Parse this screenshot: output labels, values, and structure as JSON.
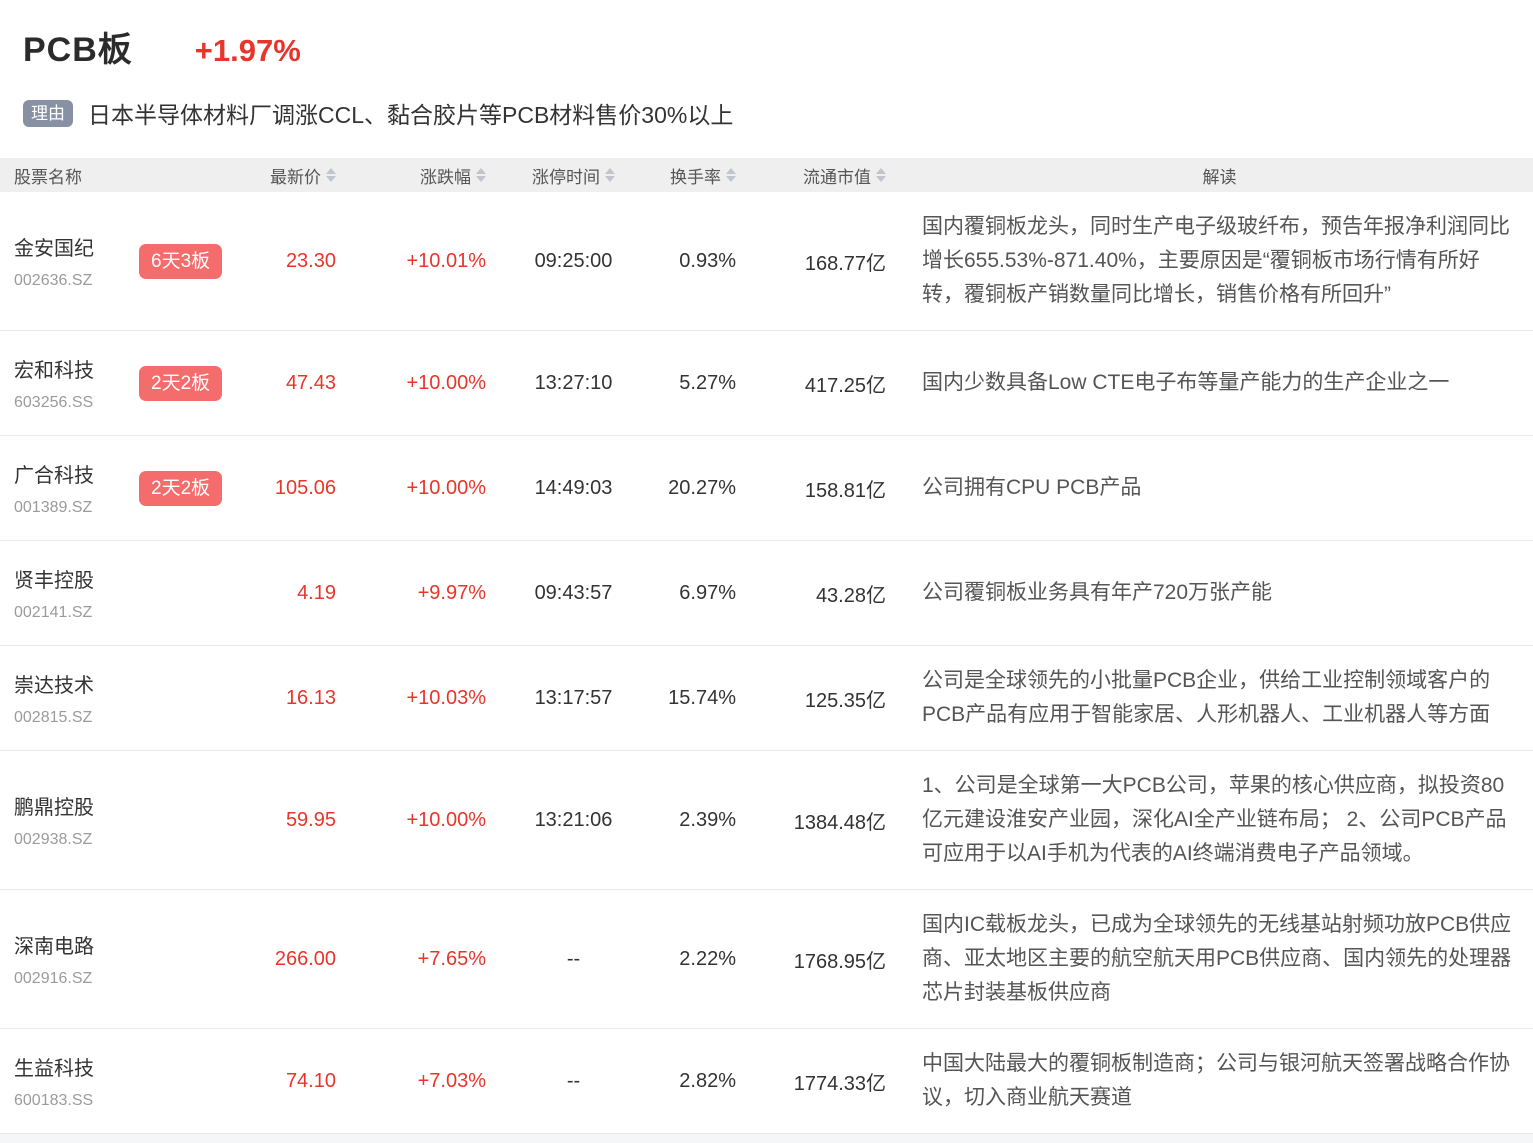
{
  "header": {
    "title": "PCB板",
    "change": "+1.97%",
    "reason_badge": "理由",
    "reason": "日本半导体材料厂调涨CCL、黏合胶片等PCB材料售价30%以上"
  },
  "table": {
    "columns": {
      "name": "股票名称",
      "price": "最新价",
      "change": "涨跌幅",
      "limit_time": "涨停时间",
      "turnover": "换手率",
      "market_cap": "流通市值",
      "analysis": "解读"
    },
    "stocks": [
      {
        "name": "金安国纪",
        "code": "002636.SZ",
        "badge": "6天3板",
        "price": "23.30",
        "change": "+10.01%",
        "limit_time": "09:25:00",
        "turnover": "0.93%",
        "market_cap": "168.77亿",
        "analysis": "国内覆铜板龙头，同时生产电子级玻纤布，预告年报净利润同比增长655.53%-871.40%，主要原因是“覆铜板市场行情有所好转，覆铜板产销数量同比增长，销售价格有所回升”"
      },
      {
        "name": "宏和科技",
        "code": "603256.SS",
        "badge": "2天2板",
        "price": "47.43",
        "change": "+10.00%",
        "limit_time": "13:27:10",
        "turnover": "5.27%",
        "market_cap": "417.25亿",
        "analysis": "国内少数具备Low CTE电子布等量产能力的生产企业之一"
      },
      {
        "name": "广合科技",
        "code": "001389.SZ",
        "badge": "2天2板",
        "price": "105.06",
        "change": "+10.00%",
        "limit_time": "14:49:03",
        "turnover": "20.27%",
        "market_cap": "158.81亿",
        "analysis": "公司拥有CPU PCB产品"
      },
      {
        "name": "贤丰控股",
        "code": "002141.SZ",
        "badge": "",
        "price": "4.19",
        "change": "+9.97%",
        "limit_time": "09:43:57",
        "turnover": "6.97%",
        "market_cap": "43.28亿",
        "analysis": "公司覆铜板业务具有年产720万张产能"
      },
      {
        "name": "崇达技术",
        "code": "002815.SZ",
        "badge": "",
        "price": "16.13",
        "change": "+10.03%",
        "limit_time": "13:17:57",
        "turnover": "15.74%",
        "market_cap": "125.35亿",
        "analysis": "公司是全球领先的小批量PCB企业，供给工业控制领域客户的PCB产品有应用于智能家居、人形机器人、工业机器人等方面"
      },
      {
        "name": "鹏鼎控股",
        "code": "002938.SZ",
        "badge": "",
        "price": "59.95",
        "change": "+10.00%",
        "limit_time": "13:21:06",
        "turnover": "2.39%",
        "market_cap": "1384.48亿",
        "analysis": "1、公司是全球第一大PCB公司，苹果的核心供应商，拟投资80亿元建设淮安产业园，深化AI全产业链布局； 2、公司PCB产品可应用于以AI手机为代表的AI终端消费电子产品领域。"
      },
      {
        "name": "深南电路",
        "code": "002916.SZ",
        "badge": "",
        "price": "266.00",
        "change": "+7.65%",
        "limit_time": "--",
        "turnover": "2.22%",
        "market_cap": "1768.95亿",
        "analysis": "国内IC载板龙头，已成为全球领先的无线基站射频功放PCB供应商、亚太地区主要的航空航天用PCB供应商、国内领先的处理器芯片封装基板供应商"
      },
      {
        "name": "生益科技",
        "code": "600183.SS",
        "badge": "",
        "price": "74.10",
        "change": "+7.03%",
        "limit_time": "--",
        "turnover": "2.82%",
        "market_cap": "1774.33亿",
        "analysis": "中国大陆最大的覆铜板制造商；公司与银河航天签署战略合作协议，切入商业航天赛道"
      }
    ]
  },
  "colors": {
    "up_red": "#e8352c",
    "badge_bg": "#f56c6c",
    "reason_badge_bg": "#8890a4",
    "header_bg": "#efefef"
  }
}
